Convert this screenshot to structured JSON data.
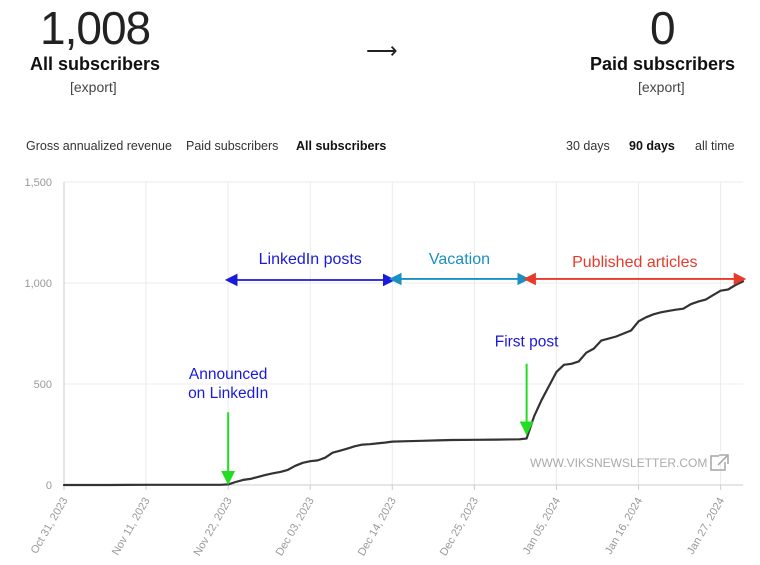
{
  "header": {
    "all_subscribers": {
      "count": "1,008",
      "title": "All subscribers",
      "export": "[export]"
    },
    "arrow": "⟶",
    "paid_subscribers": {
      "count": "0",
      "title": "Paid subscribers",
      "export": "[export]"
    }
  },
  "metric_tabs": [
    "Gross annualized revenue",
    "Paid subscribers",
    "All subscribers"
  ],
  "active_metric": "All subscribers",
  "range_tabs": [
    "30 days",
    "90 days",
    "all time"
  ],
  "active_range": "90 days",
  "watermark": "WWW.VIKSNEWSLETTER.COM",
  "colors": {
    "line": "#333333",
    "grid": "#ebebeb",
    "axis_text": "#999999",
    "blue": "#1a1adb",
    "teal": "#1a8fc4",
    "red": "#e63a2a",
    "green": "#22dd22"
  },
  "chart_data": {
    "type": "line",
    "title": "",
    "xlabel": "",
    "ylabel": "",
    "ylim": [
      0,
      1500
    ],
    "yticks": [
      0,
      500,
      1000,
      1500
    ],
    "ytick_labels": [
      "0",
      "500",
      "1,000",
      "1,500"
    ],
    "xlim": [
      "2023-10-31",
      "2024-01-30"
    ],
    "xticks": [
      "2023-10-31",
      "2023-11-11",
      "2023-11-22",
      "2023-12-03",
      "2023-12-14",
      "2023-12-25",
      "2024-01-05",
      "2024-01-16",
      "2024-01-27"
    ],
    "xtick_labels": [
      "Oct 31, 2023",
      "Nov 11, 2023",
      "Nov 22, 2023",
      "Dec 03, 2023",
      "Dec 14, 2023",
      "Dec 25, 2023",
      "Jan 05, 2024",
      "Jan 16, 2024",
      "Jan 27, 2024"
    ],
    "grid": true,
    "series": [
      {
        "points": [
          [
            "2023-10-31",
            0
          ],
          [
            "2023-11-06",
            0
          ],
          [
            "2023-11-11",
            1
          ],
          [
            "2023-11-16",
            1
          ],
          [
            "2023-11-21",
            1
          ],
          [
            "2023-11-22",
            3
          ],
          [
            "2023-11-23",
            15
          ],
          [
            "2023-11-24",
            25
          ],
          [
            "2023-11-25",
            30
          ],
          [
            "2023-11-26",
            40
          ],
          [
            "2023-11-27",
            50
          ],
          [
            "2023-11-28",
            58
          ],
          [
            "2023-11-29",
            65
          ],
          [
            "2023-11-30",
            75
          ],
          [
            "2023-12-01",
            95
          ],
          [
            "2023-12-02",
            110
          ],
          [
            "2023-12-03",
            118
          ],
          [
            "2023-12-04",
            122
          ],
          [
            "2023-12-05",
            135
          ],
          [
            "2023-12-06",
            160
          ],
          [
            "2023-12-07",
            170
          ],
          [
            "2023-12-08",
            180
          ],
          [
            "2023-12-09",
            192
          ],
          [
            "2023-12-10",
            200
          ],
          [
            "2023-12-11",
            202
          ],
          [
            "2023-12-12",
            206
          ],
          [
            "2023-12-13",
            210
          ],
          [
            "2023-12-14",
            215
          ],
          [
            "2023-12-16",
            217
          ],
          [
            "2023-12-18",
            219
          ],
          [
            "2023-12-20",
            221
          ],
          [
            "2023-12-22",
            223
          ],
          [
            "2023-12-25",
            224
          ],
          [
            "2023-12-28",
            225
          ],
          [
            "2023-12-31",
            226
          ],
          [
            "2024-01-01",
            230
          ],
          [
            "2024-01-02",
            340
          ],
          [
            "2024-01-03",
            420
          ],
          [
            "2024-01-04",
            490
          ],
          [
            "2024-01-05",
            560
          ],
          [
            "2024-01-06",
            595
          ],
          [
            "2024-01-07",
            600
          ],
          [
            "2024-01-08",
            612
          ],
          [
            "2024-01-09",
            655
          ],
          [
            "2024-01-10",
            675
          ],
          [
            "2024-01-11",
            715
          ],
          [
            "2024-01-12",
            725
          ],
          [
            "2024-01-13",
            735
          ],
          [
            "2024-01-14",
            750
          ],
          [
            "2024-01-15",
            765
          ],
          [
            "2024-01-16",
            810
          ],
          [
            "2024-01-17",
            830
          ],
          [
            "2024-01-18",
            845
          ],
          [
            "2024-01-19",
            855
          ],
          [
            "2024-01-20",
            862
          ],
          [
            "2024-01-21",
            868
          ],
          [
            "2024-01-22",
            873
          ],
          [
            "2024-01-23",
            895
          ],
          [
            "2024-01-24",
            908
          ],
          [
            "2024-01-25",
            918
          ],
          [
            "2024-01-26",
            940
          ],
          [
            "2024-01-27",
            962
          ],
          [
            "2024-01-28",
            968
          ],
          [
            "2024-01-29",
            990
          ],
          [
            "2024-01-30",
            1008
          ]
        ]
      }
    ],
    "annotations": [
      {
        "type": "range",
        "label": "LinkedIn posts",
        "from": "2023-11-22",
        "to": "2023-12-14",
        "y": 1015,
        "label_y": 1095,
        "color": "#1a1adb"
      },
      {
        "type": "range",
        "label": "Vacation",
        "from": "2023-12-14",
        "to": "2024-01-01",
        "y": 1020,
        "label_y": 1095,
        "color": "#1a8fc4"
      },
      {
        "type": "range",
        "label": "Published articles",
        "from": "2024-01-01",
        "to": "2024-01-30",
        "y": 1020,
        "label_y": 1080,
        "color": "#e63a2a"
      },
      {
        "type": "callout",
        "label": [
          "Announced",
          "on LinkedIn"
        ],
        "x": "2023-11-22",
        "y_text": 525,
        "y_from": 360,
        "y_to": 5,
        "color": "#1a1adb",
        "arrow_color": "#22dd22"
      },
      {
        "type": "callout",
        "label": [
          "First post"
        ],
        "x": "2024-01-01",
        "y_text": 685,
        "y_from": 600,
        "y_to": 250,
        "color": "#1a1adb",
        "arrow_color": "#22dd22"
      }
    ]
  }
}
